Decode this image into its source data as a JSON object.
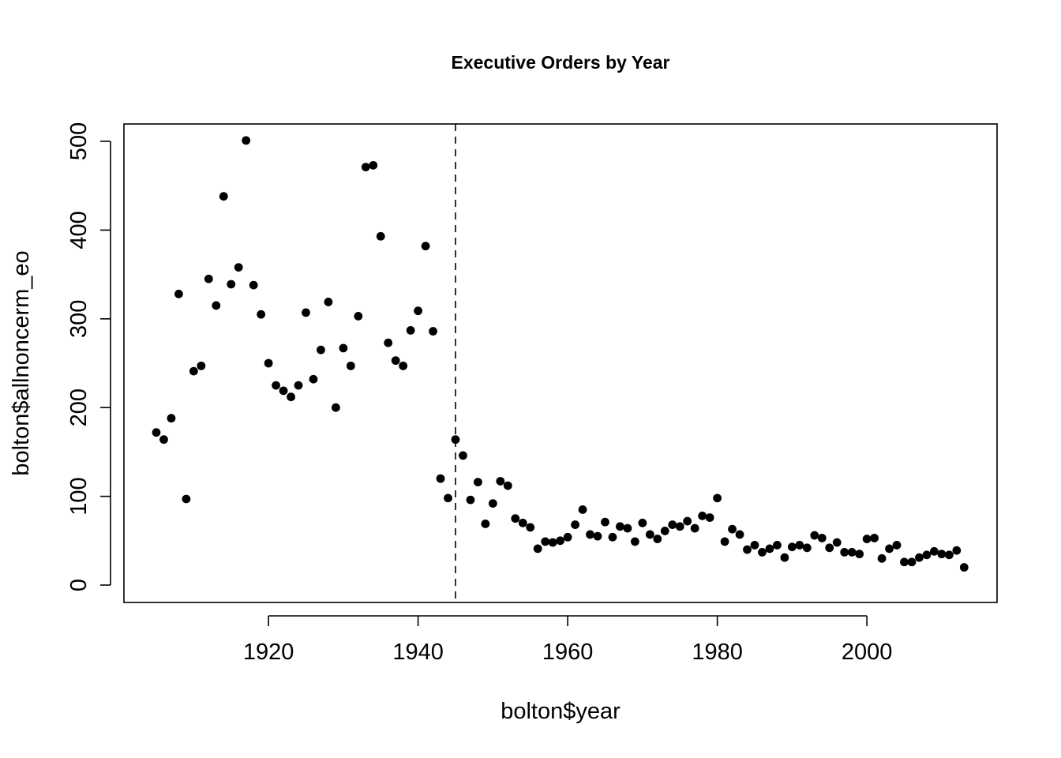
{
  "chart_data": {
    "type": "scatter",
    "title": "Executive Orders by Year",
    "xlabel": "bolton$year",
    "ylabel": "bolton$allnoncerm_eo",
    "xlim": [
      1905,
      2013
    ],
    "ylim": [
      0,
      500
    ],
    "x_ticks": [
      1920,
      1940,
      1960,
      1980,
      2000
    ],
    "y_ticks": [
      0,
      100,
      200,
      300,
      400,
      500
    ],
    "vline": {
      "x": 1945,
      "style": "dashed"
    },
    "grid": false,
    "legend": "none",
    "point_color": "#000000",
    "points": [
      {
        "x": 1905,
        "y": 172
      },
      {
        "x": 1906,
        "y": 164
      },
      {
        "x": 1907,
        "y": 188
      },
      {
        "x": 1908,
        "y": 328
      },
      {
        "x": 1909,
        "y": 97
      },
      {
        "x": 1910,
        "y": 241
      },
      {
        "x": 1911,
        "y": 247
      },
      {
        "x": 1912,
        "y": 345
      },
      {
        "x": 1913,
        "y": 315
      },
      {
        "x": 1914,
        "y": 438
      },
      {
        "x": 1915,
        "y": 339
      },
      {
        "x": 1916,
        "y": 358
      },
      {
        "x": 1917,
        "y": 501
      },
      {
        "x": 1918,
        "y": 338
      },
      {
        "x": 1919,
        "y": 305
      },
      {
        "x": 1920,
        "y": 250
      },
      {
        "x": 1921,
        "y": 225
      },
      {
        "x": 1922,
        "y": 219
      },
      {
        "x": 1923,
        "y": 212
      },
      {
        "x": 1924,
        "y": 225
      },
      {
        "x": 1925,
        "y": 307
      },
      {
        "x": 1926,
        "y": 232
      },
      {
        "x": 1927,
        "y": 265
      },
      {
        "x": 1928,
        "y": 319
      },
      {
        "x": 1929,
        "y": 200
      },
      {
        "x": 1930,
        "y": 267
      },
      {
        "x": 1931,
        "y": 247
      },
      {
        "x": 1932,
        "y": 303
      },
      {
        "x": 1933,
        "y": 471
      },
      {
        "x": 1934,
        "y": 473
      },
      {
        "x": 1935,
        "y": 393
      },
      {
        "x": 1936,
        "y": 273
      },
      {
        "x": 1937,
        "y": 253
      },
      {
        "x": 1938,
        "y": 247
      },
      {
        "x": 1939,
        "y": 287
      },
      {
        "x": 1940,
        "y": 309
      },
      {
        "x": 1941,
        "y": 382
      },
      {
        "x": 1942,
        "y": 286
      },
      {
        "x": 1943,
        "y": 120
      },
      {
        "x": 1944,
        "y": 98
      },
      {
        "x": 1945,
        "y": 164
      },
      {
        "x": 1946,
        "y": 146
      },
      {
        "x": 1947,
        "y": 96
      },
      {
        "x": 1948,
        "y": 116
      },
      {
        "x": 1949,
        "y": 69
      },
      {
        "x": 1950,
        "y": 92
      },
      {
        "x": 1951,
        "y": 117
      },
      {
        "x": 1952,
        "y": 112
      },
      {
        "x": 1953,
        "y": 75
      },
      {
        "x": 1954,
        "y": 70
      },
      {
        "x": 1955,
        "y": 65
      },
      {
        "x": 1956,
        "y": 41
      },
      {
        "x": 1957,
        "y": 49
      },
      {
        "x": 1958,
        "y": 48
      },
      {
        "x": 1959,
        "y": 50
      },
      {
        "x": 1960,
        "y": 54
      },
      {
        "x": 1961,
        "y": 68
      },
      {
        "x": 1962,
        "y": 85
      },
      {
        "x": 1963,
        "y": 57
      },
      {
        "x": 1964,
        "y": 55
      },
      {
        "x": 1965,
        "y": 71
      },
      {
        "x": 1966,
        "y": 54
      },
      {
        "x": 1967,
        "y": 66
      },
      {
        "x": 1968,
        "y": 64
      },
      {
        "x": 1969,
        "y": 49
      },
      {
        "x": 1970,
        "y": 70
      },
      {
        "x": 1971,
        "y": 57
      },
      {
        "x": 1972,
        "y": 52
      },
      {
        "x": 1973,
        "y": 61
      },
      {
        "x": 1974,
        "y": 68
      },
      {
        "x": 1975,
        "y": 66
      },
      {
        "x": 1976,
        "y": 72
      },
      {
        "x": 1977,
        "y": 64
      },
      {
        "x": 1978,
        "y": 78
      },
      {
        "x": 1979,
        "y": 76
      },
      {
        "x": 1980,
        "y": 98
      },
      {
        "x": 1981,
        "y": 49
      },
      {
        "x": 1982,
        "y": 63
      },
      {
        "x": 1983,
        "y": 57
      },
      {
        "x": 1984,
        "y": 40
      },
      {
        "x": 1985,
        "y": 45
      },
      {
        "x": 1986,
        "y": 37
      },
      {
        "x": 1987,
        "y": 41
      },
      {
        "x": 1988,
        "y": 45
      },
      {
        "x": 1989,
        "y": 31
      },
      {
        "x": 1990,
        "y": 43
      },
      {
        "x": 1991,
        "y": 45
      },
      {
        "x": 1992,
        "y": 42
      },
      {
        "x": 1993,
        "y": 56
      },
      {
        "x": 1994,
        "y": 53
      },
      {
        "x": 1995,
        "y": 42
      },
      {
        "x": 1996,
        "y": 48
      },
      {
        "x": 1997,
        "y": 37
      },
      {
        "x": 1998,
        "y": 37
      },
      {
        "x": 1999,
        "y": 35
      },
      {
        "x": 2000,
        "y": 52
      },
      {
        "x": 2001,
        "y": 53
      },
      {
        "x": 2002,
        "y": 30
      },
      {
        "x": 2003,
        "y": 41
      },
      {
        "x": 2004,
        "y": 45
      },
      {
        "x": 2005,
        "y": 26
      },
      {
        "x": 2006,
        "y": 26
      },
      {
        "x": 2007,
        "y": 31
      },
      {
        "x": 2008,
        "y": 34
      },
      {
        "x": 2009,
        "y": 38
      },
      {
        "x": 2010,
        "y": 35
      },
      {
        "x": 2011,
        "y": 34
      },
      {
        "x": 2012,
        "y": 39
      },
      {
        "x": 2013,
        "y": 20
      }
    ]
  }
}
